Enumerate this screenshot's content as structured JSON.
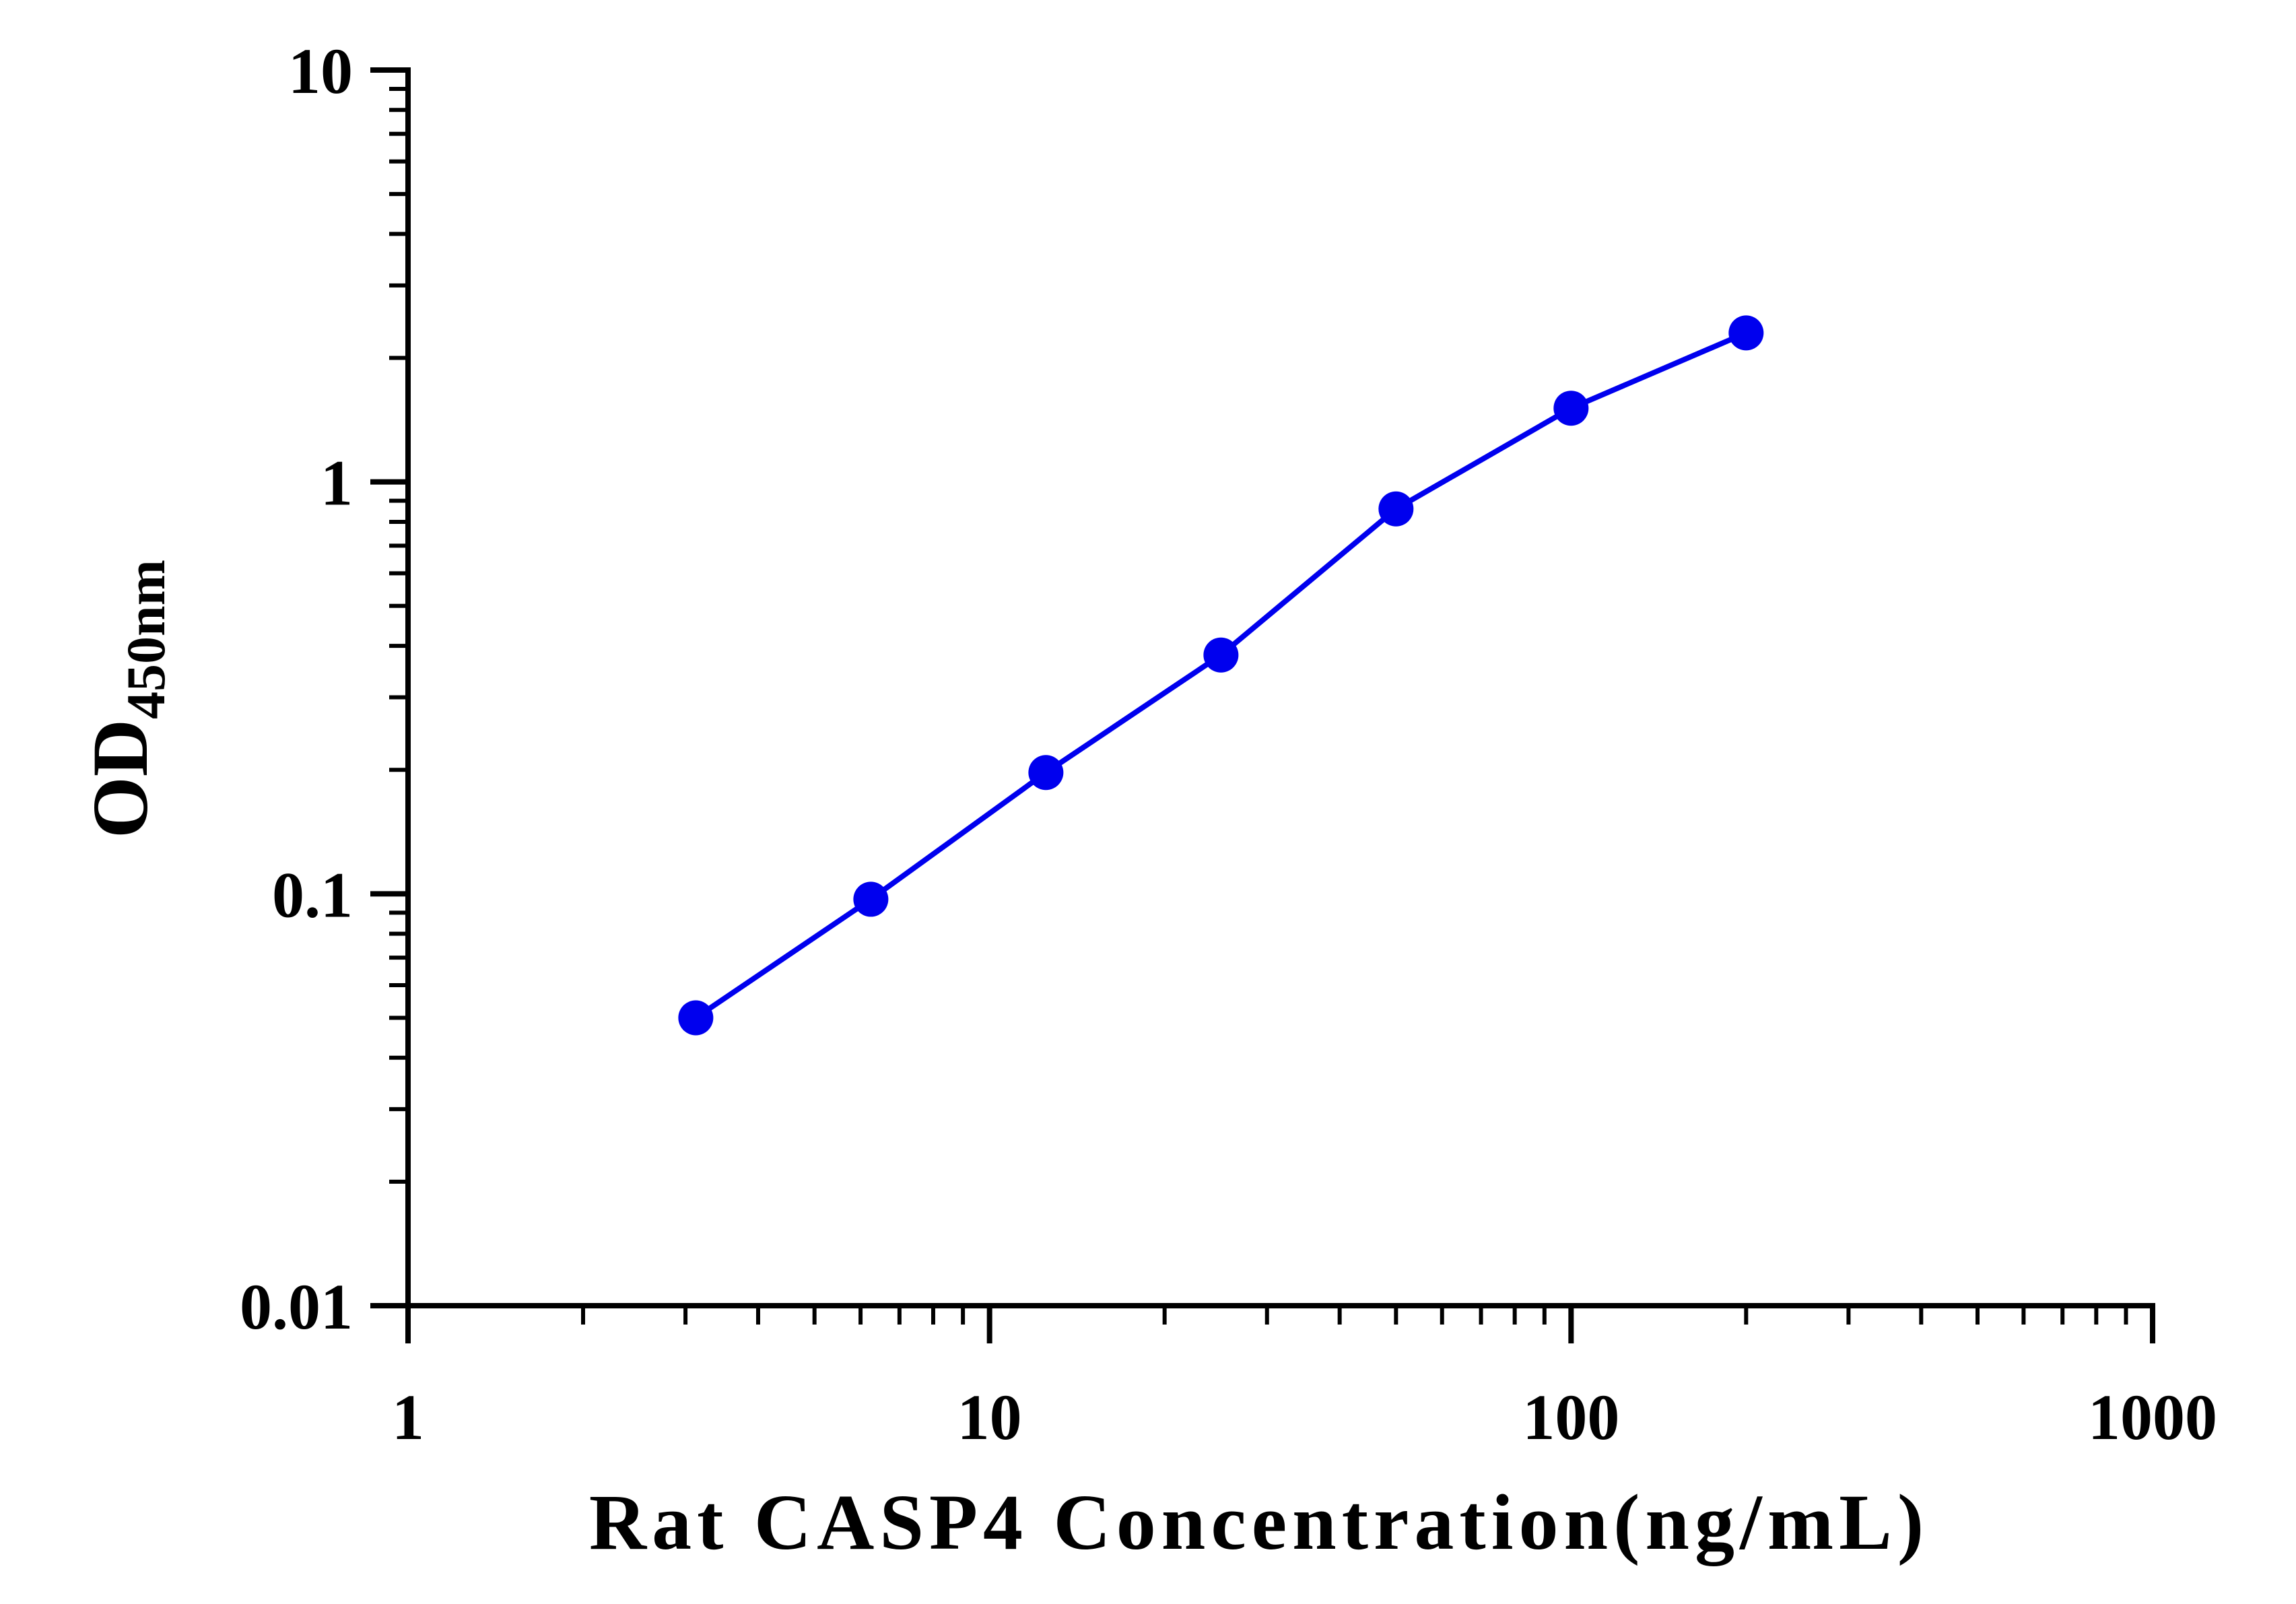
{
  "chart_data": {
    "type": "line",
    "xscale": "log",
    "yscale": "log",
    "xlim": [
      1,
      1000
    ],
    "ylim": [
      0.01,
      10
    ],
    "xticks": [
      {
        "value": 1,
        "label": "1"
      },
      {
        "value": 10,
        "label": "10"
      },
      {
        "value": 100,
        "label": "100"
      },
      {
        "value": 1000,
        "label": "1000"
      }
    ],
    "yticks": [
      {
        "value": 10,
        "label": "10"
      },
      {
        "value": 1,
        "label": "1"
      },
      {
        "value": 0.1,
        "label": "0.1"
      },
      {
        "value": 0.01,
        "label": "0.01"
      }
    ],
    "xlabel": "Rat CASP4 Concentration(ng/mL)",
    "ylabel_main": "OD",
    "ylabel_sub": "450nm",
    "grid": false,
    "series": [
      {
        "color": "#0000ee",
        "x": [
          3.125,
          6.25,
          12.5,
          25,
          50,
          100,
          200
        ],
        "y": [
          0.05,
          0.097,
          0.197,
          0.38,
          0.86,
          1.51,
          2.3
        ]
      }
    ]
  }
}
